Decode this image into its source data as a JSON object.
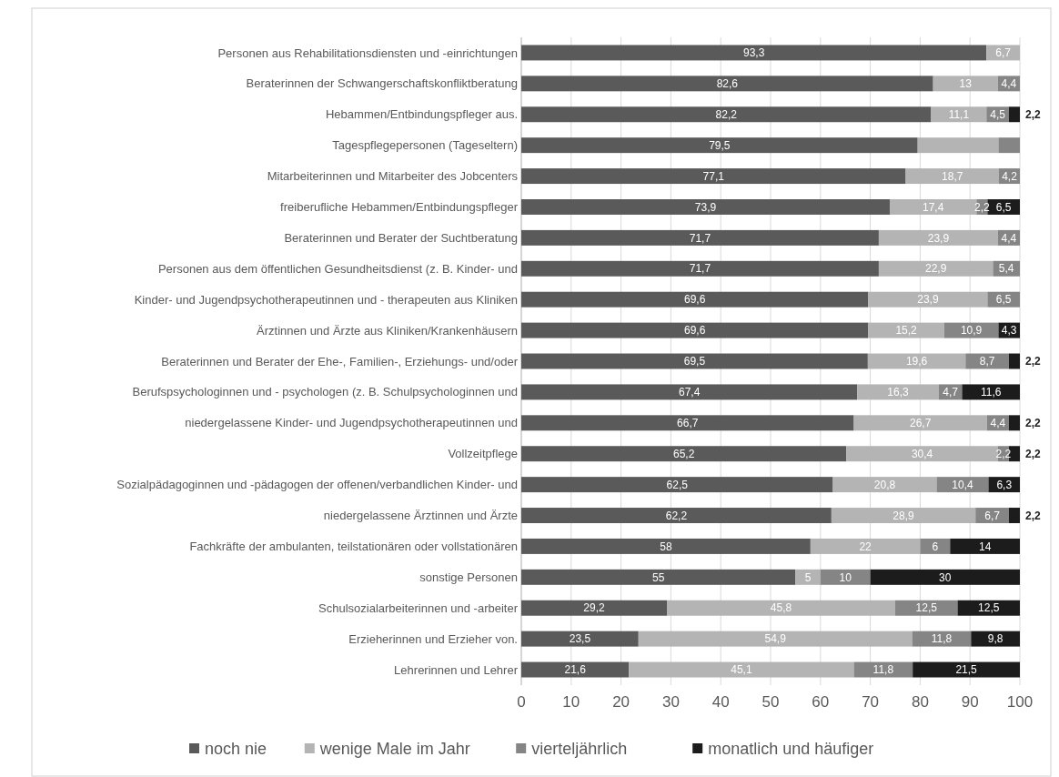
{
  "chart_data": {
    "type": "bar",
    "orientation": "horizontal",
    "stacked": true,
    "categories": [
      "Personen aus Rehabilitationsdiensten und -einrichtungen",
      "Beraterinnen der Schwangerschaftskonfliktberatung",
      "Hebammen/Entbindungspfleger aus.",
      "Tagespflegepersonen (Tageseltern)",
      "Mitarbeiterinnen und Mitarbeiter des Jobcenters",
      "freiberufliche Hebammen/Entbindungspfleger",
      "Beraterinnen und Berater der Suchtberatung",
      "Personen aus dem öffentlichen Gesundheitsdienst (z. B. Kinder- und",
      "Kinder- und Jugendpsychotherapeutinnen und - therapeuten aus Kliniken",
      "Ärztinnen und Ärzte aus Kliniken/Krankenhäusern",
      "Beraterinnen und Berater der Ehe-, Familien-, Erziehungs- und/oder",
      "Berufspsychologinnen und - psychologen (z. B. Schulpsychologinnen und",
      "niedergelassene Kinder- und Jugendpsychotherapeutinnen und",
      "Vollzeitpflege",
      "Sozialpädagoginnen und -pädagogen der offenen/verbandlichen Kinder- und",
      "niedergelassene Ärztinnen und Ärzte",
      "Fachkräfte der ambulanten, teilstationären oder vollstationären",
      "sonstige Personen",
      "Schulsozialarbeiterinnen und -arbeiter",
      "Erzieherinnen und Erzieher von.",
      "Lehrerinnen und Lehrer"
    ],
    "series": [
      {
        "name": "noch nie",
        "color": "#5a5a5a",
        "values": [
          93.3,
          82.6,
          82.2,
          79.5,
          77.1,
          73.9,
          71.7,
          71.7,
          69.6,
          69.6,
          69.5,
          67.4,
          66.7,
          65.2,
          62.5,
          62.2,
          58,
          55,
          29.2,
          23.5,
          21.6
        ],
        "value_labels": [
          "93,3",
          "82,6",
          "82,2",
          "79,5",
          "77,1",
          "73,9",
          "71,7",
          "71,7",
          "69,6",
          "69,6",
          "69,5",
          "67,4",
          "66,7",
          "65,2",
          "62,5",
          "62,2",
          "58",
          "55",
          "29,2",
          "23,5",
          "21,6"
        ]
      },
      {
        "name": "wenige Male im Jahr",
        "color": "#b4b4b4",
        "values": [
          6.7,
          13,
          11.1,
          16.2,
          18.7,
          17.4,
          23.9,
          22.9,
          23.9,
          15.2,
          19.6,
          16.3,
          26.7,
          30.4,
          20.8,
          28.9,
          22,
          5,
          45.8,
          54.9,
          45.1
        ],
        "value_labels": [
          "6,7",
          "13",
          "11,1",
          null,
          "18,7",
          "17,4",
          "23,9",
          "22,9",
          "23,9",
          "15,2",
          "19,6",
          "16,3",
          "26,7",
          "30,4",
          "20,8",
          "28,9",
          "22",
          "5",
          "45,8",
          "54,9",
          "45,1"
        ]
      },
      {
        "name": "vierteljährlich",
        "color": "#858585",
        "values": [
          null,
          4.4,
          4.5,
          4.3,
          4.2,
          2.2,
          4.4,
          5.4,
          6.5,
          10.9,
          8.7,
          4.7,
          4.4,
          2.2,
          10.4,
          6.7,
          6,
          10,
          12.5,
          11.8,
          11.8
        ],
        "value_labels": [
          null,
          "4,4",
          "4,5",
          null,
          "4,2",
          "2,2",
          "4,4",
          "5,4",
          "6,5",
          "10,9",
          "8,7",
          "4,7",
          "4,4",
          "2,2",
          "10,4",
          "6,7",
          "6",
          "10",
          "12,5",
          "11,8",
          "11,8"
        ]
      },
      {
        "name": "monatlich und häufiger",
        "color": "#1c1c1c",
        "values": [
          null,
          null,
          2.2,
          null,
          null,
          6.5,
          null,
          null,
          null,
          4.3,
          2.2,
          11.6,
          2.2,
          2.2,
          6.3,
          2.2,
          14,
          30,
          12.5,
          9.8,
          21.5
        ],
        "value_labels": [
          null,
          null,
          "2,2",
          null,
          null,
          "6,5",
          null,
          null,
          null,
          "4,3",
          "2,2",
          "11,6",
          "2,2",
          "2,2",
          "6,3",
          "2,2",
          "14",
          "30",
          "12,5",
          "9,8",
          "21,5"
        ]
      }
    ],
    "xlim": [
      0,
      100
    ],
    "xticks": [
      0,
      10,
      20,
      30,
      40,
      50,
      60,
      70,
      80,
      90,
      100
    ],
    "grid": "x",
    "legend": "bottom"
  }
}
